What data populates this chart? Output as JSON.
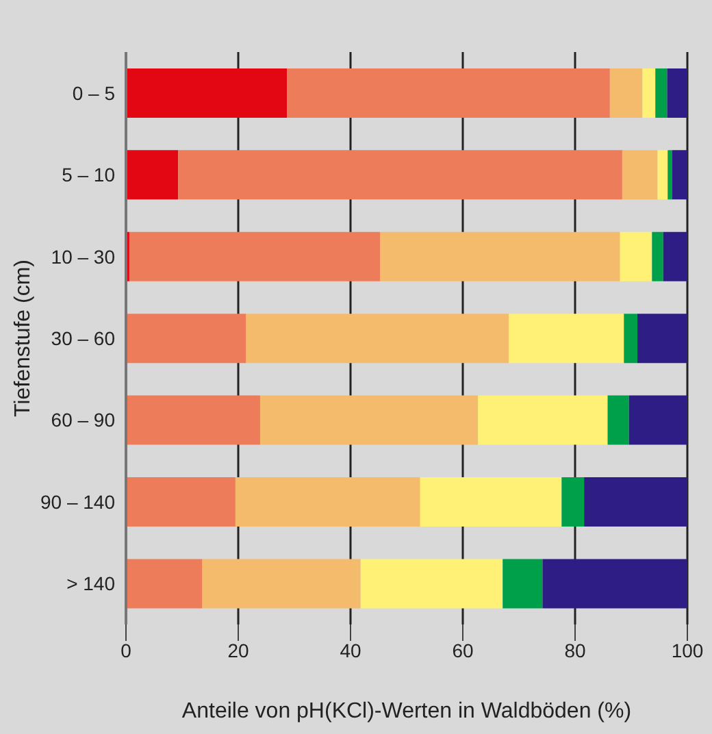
{
  "chart_data": {
    "type": "bar",
    "orientation": "horizontal",
    "stacked": true,
    "xlabel": "Anteile von pH(KCl)-Werten in Waldböden (%)",
    "ylabel": "Tiefenstufe (cm)",
    "categories": [
      "0 – 5",
      "5 – 10",
      "10 – 30",
      "30 – 60",
      "60 – 90",
      "90 – 140",
      "> 140"
    ],
    "series": [
      {
        "color": "#e30613",
        "values": [
          28.7,
          9.3,
          0.6,
          0,
          0,
          0,
          0
        ]
      },
      {
        "color": "#ed7d5a",
        "values": [
          57.5,
          79.1,
          44.7,
          21.4,
          23.9,
          19.5,
          13.6
        ]
      },
      {
        "color": "#f5bb6c",
        "values": [
          5.8,
          6.3,
          42.7,
          46.8,
          38.8,
          32.9,
          28.2
        ]
      },
      {
        "color": "#fff176",
        "values": [
          2.3,
          1.8,
          5.7,
          20.5,
          23.1,
          25.2,
          25.3
        ]
      },
      {
        "color": "#00a04a",
        "values": [
          2.1,
          0.8,
          2.0,
          2.4,
          3.8,
          4.0,
          7.1
        ]
      },
      {
        "color": "#2e1d85",
        "values": [
          3.6,
          2.7,
          4.3,
          8.9,
          10.4,
          18.4,
          25.8
        ]
      }
    ],
    "xlim": [
      0,
      100
    ],
    "xticks": [
      0,
      20,
      40,
      60,
      80,
      100
    ],
    "grid": "x",
    "legend": false
  }
}
